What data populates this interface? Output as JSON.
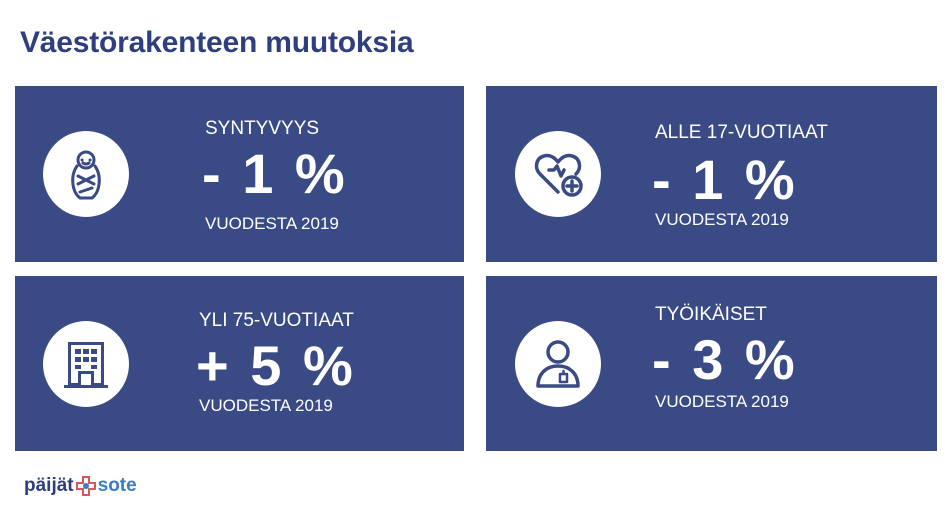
{
  "title": "Väestörakenteen muutoksia",
  "cards": [
    {
      "icon": "baby-icon",
      "label": "SYNTYVYYS",
      "value": "- 1 %",
      "sub": "VUODESTA 2019"
    },
    {
      "icon": "heart-plus-icon",
      "label": "ALLE 17-VUOTIAAT",
      "value": "- 1 %",
      "sub": "VUODESTA 2019"
    },
    {
      "icon": "building-icon",
      "label": "YLI 75-VUOTIAAT",
      "value": "+ 5 %",
      "sub": "VUODESTA 2019"
    },
    {
      "icon": "worker-icon",
      "label": "TYÖIKÄISET",
      "value": "- 3 %",
      "sub": "VUODESTA 2019"
    }
  ],
  "logo": {
    "left": "päijät",
    "right": "sote"
  },
  "colors": {
    "card": "#3a4a85",
    "title": "#2f3f7d",
    "logo_accent": "#d9565f",
    "logo_blue": "#3c7bc9"
  }
}
